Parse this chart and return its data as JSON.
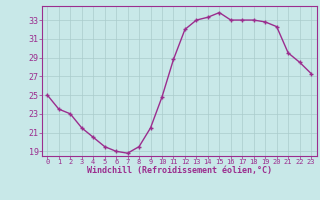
{
  "x": [
    0,
    1,
    2,
    3,
    4,
    5,
    6,
    7,
    8,
    9,
    10,
    11,
    12,
    13,
    14,
    15,
    16,
    17,
    18,
    19,
    20,
    21,
    22,
    23
  ],
  "y": [
    25,
    23.5,
    23,
    21.5,
    20.5,
    19.5,
    19,
    18.8,
    19.5,
    21.5,
    24.8,
    28.8,
    32.0,
    33.0,
    33.3,
    33.8,
    33.0,
    33.0,
    33.0,
    32.8,
    32.3,
    29.5,
    28.5,
    27.3
  ],
  "line_color": "#9b2d8e",
  "marker": "D",
  "marker_size": 2.5,
  "bg_color": "#c8e8e8",
  "grid_color": "#aacccc",
  "xlabel": "Windchill (Refroidissement éolien,°C)",
  "xlabel_color": "#9b2d8e",
  "tick_color": "#9b2d8e",
  "ylim": [
    18.5,
    34.5
  ],
  "yticks": [
    19,
    21,
    23,
    25,
    27,
    29,
    31,
    33
  ],
  "xticks": [
    0,
    1,
    2,
    3,
    4,
    5,
    6,
    7,
    8,
    9,
    10,
    11,
    12,
    13,
    14,
    15,
    16,
    17,
    18,
    19,
    20,
    21,
    22,
    23
  ],
  "line_width": 1.0,
  "spine_color": "#9b2d8e"
}
